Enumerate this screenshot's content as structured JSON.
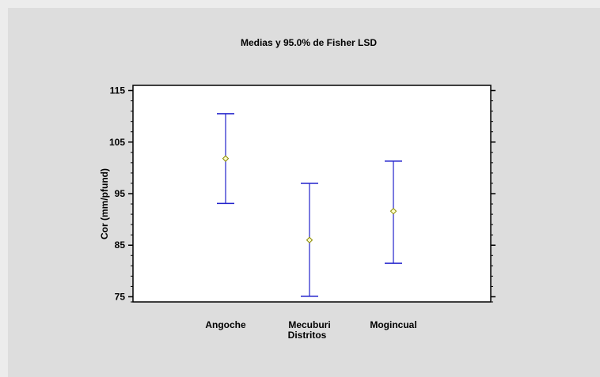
{
  "chart_data": {
    "type": "interval",
    "title": "Medias y 95.0% de Fisher LSD",
    "xlabel": "Distritos",
    "ylabel": "Cor (mm/pfund)",
    "ylim": [
      74,
      116
    ],
    "yticks": [
      75,
      85,
      95,
      105,
      115
    ],
    "categories": [
      "Angoche",
      "Mecuburi",
      "Mogincual"
    ],
    "means": [
      101.8,
      86.0,
      91.6
    ],
    "lower": [
      93.1,
      75.1,
      81.5
    ],
    "upper": [
      110.5,
      97.0,
      101.3
    ],
    "colors": {
      "interval": "#2222cc",
      "mean_marker": "#888800",
      "frame": "#000000"
    },
    "grid": false
  }
}
